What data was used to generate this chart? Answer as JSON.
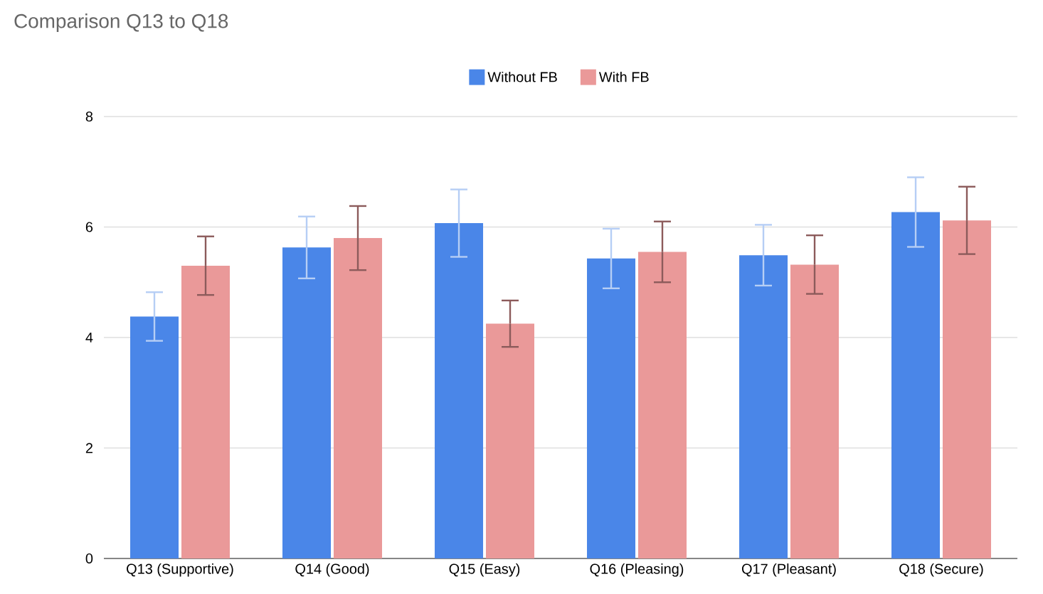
{
  "chart_data": {
    "type": "bar",
    "title": "Comparison Q13 to Q18",
    "categories": [
      "Q13 (Supportive)",
      "Q14 (Good)",
      "Q15 (Easy)",
      "Q16 (Pleasing)",
      "Q17 (Pleasant)",
      "Q18 (Secure)"
    ],
    "series": [
      {
        "name": "Without FB",
        "color": "#4a86e8",
        "values": [
          4.38,
          5.63,
          6.07,
          5.43,
          5.49,
          6.27
        ],
        "errors": [
          0.44,
          0.56,
          0.61,
          0.54,
          0.55,
          0.63
        ]
      },
      {
        "name": "With FB",
        "color": "#ea9999",
        "values": [
          5.3,
          5.8,
          4.25,
          5.55,
          5.32,
          6.12
        ],
        "errors": [
          0.53,
          0.58,
          0.42,
          0.55,
          0.53,
          0.61
        ]
      }
    ],
    "ylim": [
      0,
      8
    ],
    "yticks": [
      0,
      2,
      4,
      6,
      8
    ],
    "grid": "y",
    "legend": "top"
  }
}
